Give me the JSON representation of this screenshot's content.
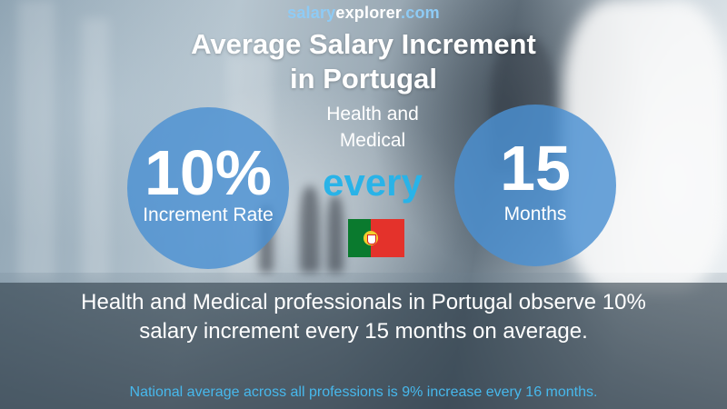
{
  "brand": {
    "part1": "salary",
    "part2": "explorer",
    "part3": ".com"
  },
  "title": {
    "line1": "Average Salary Increment",
    "line2": "in Portugal"
  },
  "subtitle": {
    "line1": "Health and",
    "line2": "Medical"
  },
  "increment": {
    "value": "10%",
    "label": "Increment Rate"
  },
  "connector": "every",
  "interval": {
    "value": "15",
    "label": "Months"
  },
  "flag": {
    "country": "Portugal",
    "icon": "portugal-flag-icon",
    "colors": [
      "#0a7a2e",
      "#e4322b",
      "#f2cf2d"
    ]
  },
  "description": {
    "line1": "Health and Medical professionals in Portugal observe 10%",
    "line2": "salary increment every 15 months on average."
  },
  "national_average": "National average across all professions is 9% increase every 16 months.",
  "colors": {
    "circle": "#4a90d2",
    "accent": "#29b3e8",
    "brand_light": "#8ecbf5",
    "footer_text": "#47b8ec"
  }
}
